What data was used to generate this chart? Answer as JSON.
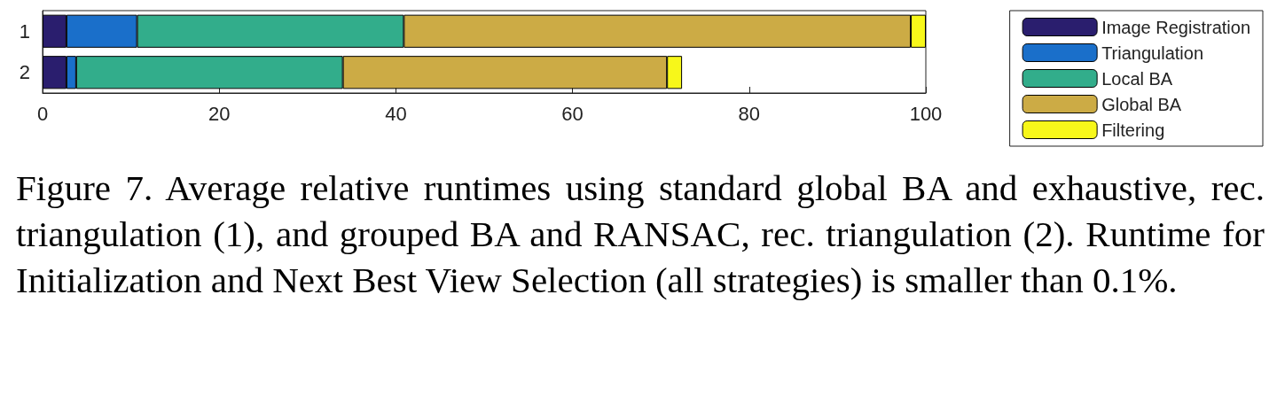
{
  "chart_data": {
    "type": "bar",
    "orientation": "horizontal",
    "stacked": true,
    "categories": [
      "1",
      "2"
    ],
    "series": [
      {
        "name": "Image Registration",
        "color": "#2a1e6e",
        "values": [
          2.7,
          2.7
        ]
      },
      {
        "name": "Triangulation",
        "color": "#1a6fca",
        "values": [
          8.0,
          1.1
        ]
      },
      {
        "name": "Local BA",
        "color": "#32ad8b",
        "values": [
          30.2,
          30.2
        ]
      },
      {
        "name": "Global BA",
        "color": "#ccab45",
        "values": [
          57.4,
          36.7
        ]
      },
      {
        "name": "Filtering",
        "color": "#f7f71a",
        "values": [
          1.7,
          1.7
        ]
      }
    ],
    "xlim": [
      0,
      100
    ],
    "xticks": [
      0,
      20,
      40,
      60,
      80,
      100
    ],
    "grid": false,
    "legend": "right",
    "annotations": [
      "Figure 7. Average relative runtimes using standard global BA and exhaustive, rec. triangulation (1), and grouped BA and RANSAC, rec. triangulation (2).  Runtime for Initialization and Next Best View Selection (all strategies) is smaller than 0.1%."
    ]
  }
}
